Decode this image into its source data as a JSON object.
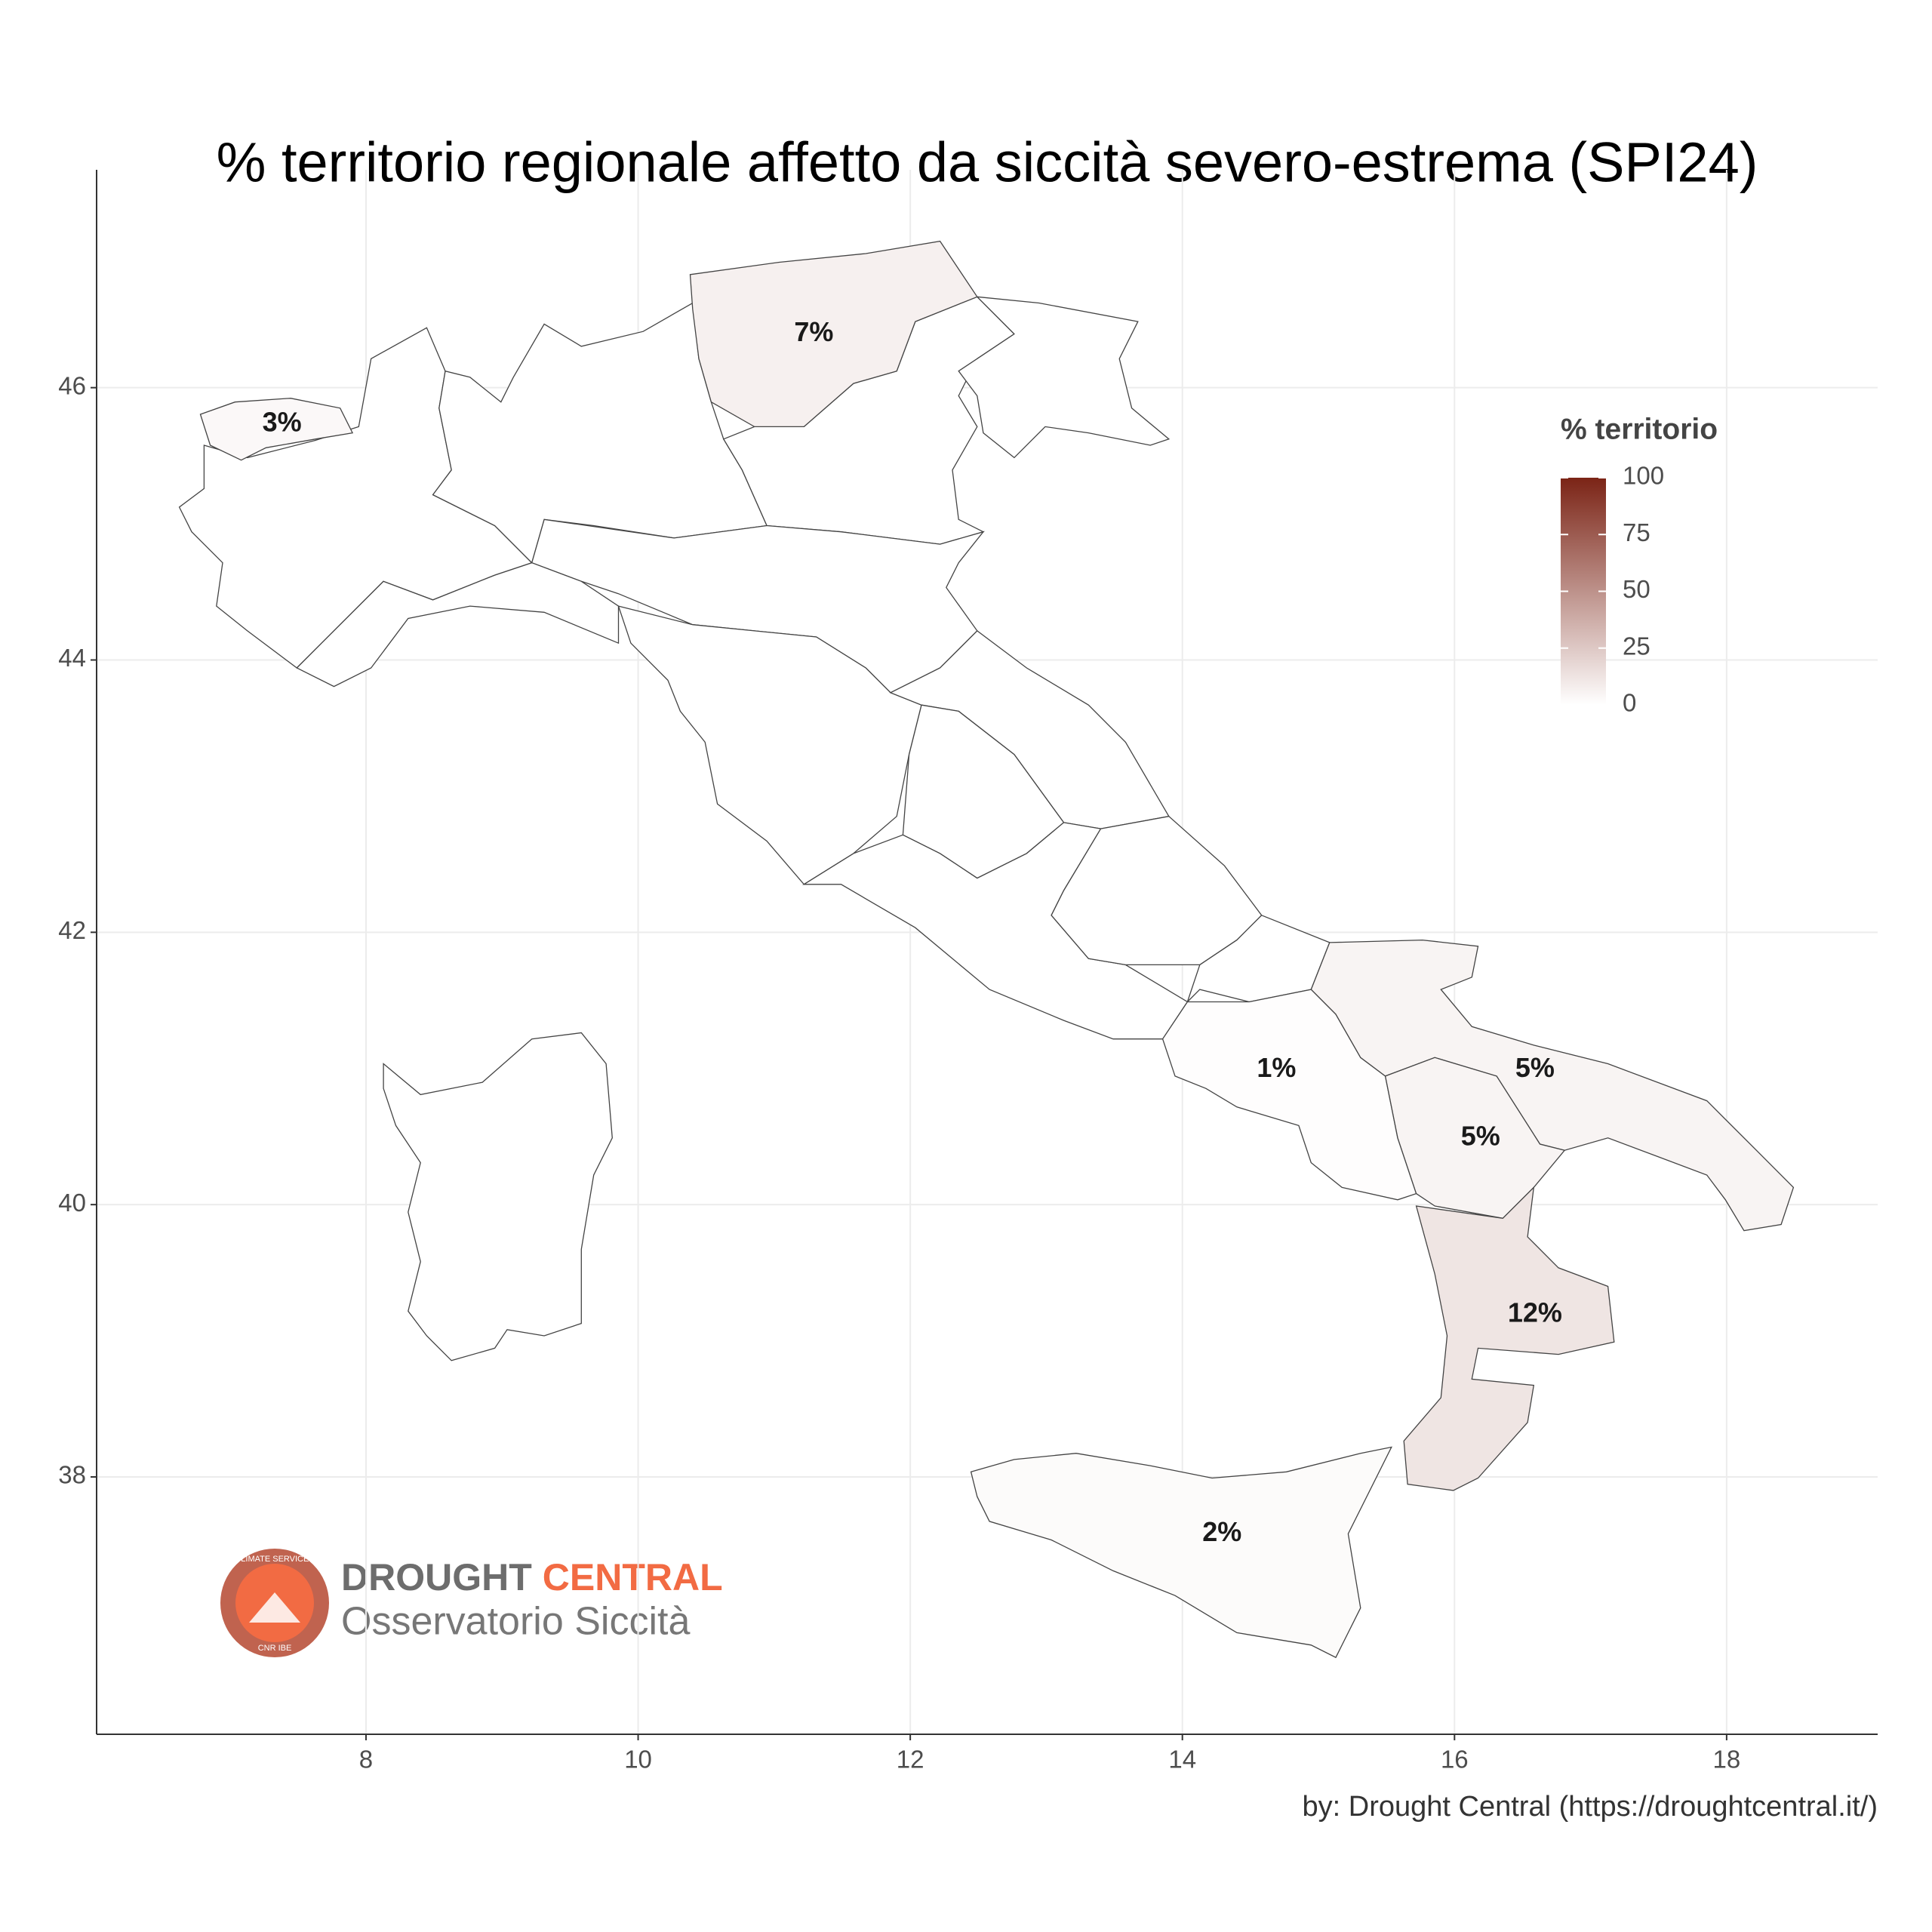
{
  "chart_data": {
    "type": "choropleth",
    "title": "% territorio regionale affetto da siccità severo-estrema (SPI24)",
    "caption": "by: Drought Central (https://droughtcentral.it/)",
    "xlim": [
      6.02,
      19.11
    ],
    "ylim": [
      36.11,
      47.6
    ],
    "xticks": [
      8,
      10,
      12,
      14,
      16,
      18
    ],
    "yticks": [
      38,
      40,
      42,
      44,
      46
    ],
    "grid": true,
    "values": [
      3,
      7,
      1,
      5,
      5,
      12,
      2
    ],
    "value_labels": [
      "3%",
      "7%",
      "1%",
      "5%",
      "5%",
      "12%",
      "2%"
    ],
    "legend_title": "% territorio",
    "colorbar": {
      "lim": [
        0,
        100
      ],
      "ticks": [
        0,
        25,
        50,
        75,
        100
      ],
      "low": "#ffffff",
      "high": "#7b2416"
    },
    "logo": {
      "name_left": "DROUGHT",
      "name_right": "CENTRAL",
      "subtitle": "Osservatorio Siccità",
      "ring_top": "CLIMATE SERVICES",
      "ring_bottom": "CNR IBE"
    }
  }
}
